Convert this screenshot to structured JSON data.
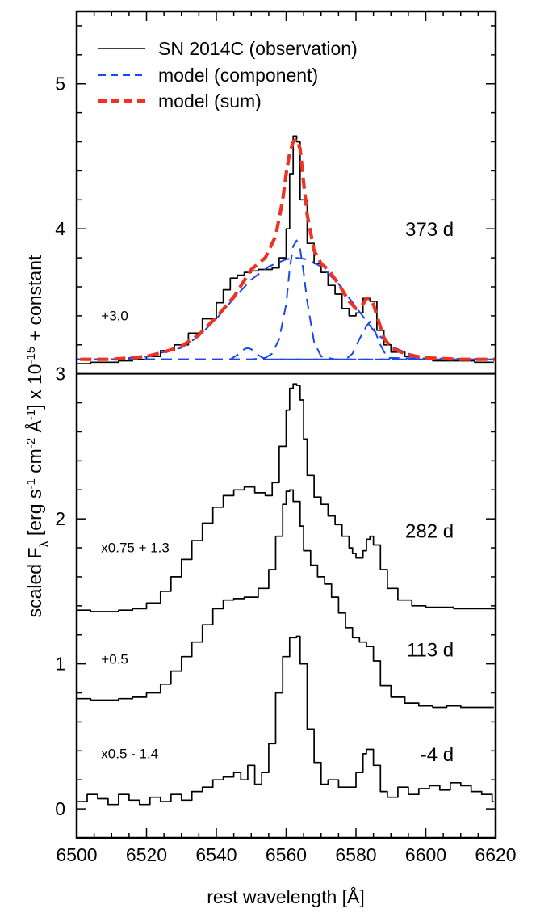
{
  "chart_data": {
    "type": "line",
    "title": "",
    "xlabel": "rest wavelength [Å]",
    "ylabel": {
      "prefix": "scaled F",
      "sub": "λ",
      "unit_open": " [erg s",
      "exp1": "-1",
      "unit_cm": " cm",
      "exp2": "-2",
      "unit_a": " Å",
      "exp3": "-1",
      "unit_close": "] x 10",
      "exp4": "-15",
      "suffix": " + constant"
    },
    "xlim": [
      6500,
      6620
    ],
    "ylim": [
      -0.2,
      5.5
    ],
    "x_ticks": [
      6500,
      6520,
      6540,
      6560,
      6580,
      6600,
      6620
    ],
    "y_ticks": [
      0,
      1,
      2,
      3,
      4,
      5
    ],
    "legend": {
      "position": "top-left",
      "entries": [
        {
          "label": "SN 2014C (observation)",
          "style": "solid",
          "color": "#000000"
        },
        {
          "label": "model (component)",
          "style": "dashed",
          "color": "#1a49e6"
        },
        {
          "label": "model (sum)",
          "style": "thick-dashed",
          "color": "#ee3322"
        }
      ]
    },
    "panel_divider_y": 3.0,
    "colors": {
      "observation": "#000000",
      "component": "#1a49e6",
      "sum": "#ee3322"
    },
    "epochs": [
      {
        "label": "373 d",
        "offset_text": "+3.0",
        "label_at": [
          6608,
          3.95
        ],
        "offset_at": [
          6507,
          3.37
        ]
      },
      {
        "label": "282 d",
        "offset_text": "x0.75 + 1.3",
        "label_at": [
          6608,
          1.87
        ],
        "offset_at": [
          6507,
          1.77
        ]
      },
      {
        "label": "113 d",
        "offset_text": "+0.5",
        "label_at": [
          6608,
          1.05
        ],
        "offset_at": [
          6507,
          1.0
        ]
      },
      {
        "label": "-4 d",
        "offset_text": "x0.5 - 1.4",
        "label_at": [
          6608,
          0.33
        ],
        "offset_at": [
          6507,
          0.35
        ]
      }
    ],
    "series": [
      {
        "name": "373 d observation",
        "kind": "step",
        "x": [
          6500,
          6504,
          6508,
          6512,
          6516,
          6520,
          6524,
          6528,
          6532,
          6536,
          6540,
          6542,
          6544,
          6546,
          6548,
          6550,
          6552,
          6554,
          6556,
          6558,
          6560,
          6561,
          6562,
          6563,
          6564,
          6566,
          6568,
          6570,
          6572,
          6574,
          6576,
          6578,
          6580,
          6582,
          6584,
          6586,
          6588,
          6590,
          6594,
          6598,
          6602,
          6606,
          6610,
          6614,
          6618
        ],
        "y": [
          3.07,
          3.08,
          3.08,
          3.09,
          3.1,
          3.12,
          3.16,
          3.2,
          3.28,
          3.38,
          3.49,
          3.58,
          3.66,
          3.68,
          3.7,
          3.71,
          3.72,
          3.72,
          3.73,
          3.8,
          4.0,
          4.38,
          4.64,
          4.6,
          4.2,
          3.9,
          3.76,
          3.7,
          3.61,
          3.55,
          3.45,
          3.4,
          3.42,
          3.52,
          3.5,
          3.3,
          3.2,
          3.15,
          3.12,
          3.1,
          3.09,
          3.09,
          3.09,
          3.08,
          3.08
        ]
      },
      {
        "name": "373 d broad component",
        "kind": "line",
        "x": [
          6500,
          6510,
          6520,
          6530,
          6535,
          6540,
          6545,
          6550,
          6555,
          6560,
          6563,
          6566,
          6570,
          6575,
          6580,
          6585,
          6590,
          6595,
          6600,
          6610,
          6620
        ],
        "y": [
          3.1,
          3.1,
          3.12,
          3.18,
          3.26,
          3.38,
          3.52,
          3.65,
          3.74,
          3.79,
          3.8,
          3.79,
          3.74,
          3.62,
          3.46,
          3.3,
          3.19,
          3.14,
          3.11,
          3.1,
          3.1
        ]
      },
      {
        "name": "373 d narrow component",
        "kind": "line",
        "x": [
          6500,
          6550,
          6554,
          6556,
          6558,
          6560,
          6561,
          6562,
          6563,
          6564,
          6565,
          6566,
          6568,
          6570,
          6574,
          6620
        ],
        "y": [
          3.1,
          3.1,
          3.11,
          3.14,
          3.24,
          3.48,
          3.72,
          3.88,
          3.92,
          3.86,
          3.7,
          3.5,
          3.22,
          3.12,
          3.1,
          3.1
        ]
      },
      {
        "name": "373 d component 6548",
        "kind": "line",
        "x": [
          6500,
          6544,
          6546,
          6548,
          6549,
          6550,
          6552,
          6554,
          6620
        ],
        "y": [
          3.1,
          3.1,
          3.13,
          3.17,
          3.18,
          3.17,
          3.13,
          3.1,
          3.1
        ]
      },
      {
        "name": "373 d component 6584",
        "kind": "line",
        "x": [
          6500,
          6577,
          6579,
          6581,
          6583,
          6584,
          6585,
          6587,
          6589,
          6620
        ],
        "y": [
          3.1,
          3.1,
          3.14,
          3.24,
          3.33,
          3.36,
          3.32,
          3.2,
          3.11,
          3.1
        ]
      },
      {
        "name": "373 d model sum",
        "kind": "line",
        "x": [
          6501,
          6510,
          6520,
          6525,
          6530,
          6535,
          6540,
          6545,
          6550,
          6554,
          6557,
          6559,
          6560,
          6561,
          6562,
          6563,
          6564,
          6565,
          6566,
          6568,
          6570,
          6572,
          6575,
          6578,
          6580,
          6582,
          6583,
          6584,
          6585,
          6586,
          6588,
          6590,
          6595,
          6600,
          6610,
          6620
        ],
        "y": [
          3.1,
          3.1,
          3.12,
          3.15,
          3.19,
          3.27,
          3.39,
          3.53,
          3.72,
          3.8,
          3.95,
          4.2,
          4.38,
          4.52,
          4.6,
          4.62,
          4.55,
          4.32,
          4.1,
          3.85,
          3.76,
          3.72,
          3.62,
          3.5,
          3.45,
          3.48,
          3.52,
          3.52,
          3.48,
          3.4,
          3.25,
          3.18,
          3.13,
          3.11,
          3.1,
          3.1
        ]
      },
      {
        "name": "282 d observation",
        "kind": "step",
        "x": [
          6500,
          6504,
          6508,
          6512,
          6516,
          6520,
          6524,
          6527,
          6530,
          6533,
          6536,
          6539,
          6542,
          6545,
          6548,
          6551,
          6554,
          6556,
          6558,
          6560,
          6561,
          6562,
          6563,
          6564,
          6565,
          6566,
          6568,
          6570,
          6572,
          6574,
          6576,
          6578,
          6579,
          6580,
          6582,
          6583,
          6584,
          6585,
          6587,
          6589,
          6592,
          6596,
          6600,
          6604,
          6608,
          6612,
          6616,
          6620
        ],
        "y": [
          1.37,
          1.36,
          1.36,
          1.37,
          1.38,
          1.42,
          1.5,
          1.6,
          1.72,
          1.85,
          1.97,
          2.08,
          2.16,
          2.2,
          2.22,
          2.18,
          2.16,
          2.25,
          2.5,
          2.75,
          2.9,
          2.93,
          2.92,
          2.82,
          2.55,
          2.3,
          2.15,
          2.1,
          2.02,
          1.96,
          1.88,
          1.8,
          1.76,
          1.73,
          1.78,
          1.86,
          1.88,
          1.82,
          1.65,
          1.52,
          1.44,
          1.4,
          1.39,
          1.39,
          1.38,
          1.38,
          1.38,
          1.38
        ]
      },
      {
        "name": "113 d observation",
        "kind": "step",
        "x": [
          6500,
          6504,
          6508,
          6512,
          6516,
          6520,
          6524,
          6527,
          6530,
          6533,
          6536,
          6539,
          6542,
          6545,
          6548,
          6552,
          6555,
          6557,
          6559,
          6560,
          6561,
          6562,
          6564,
          6565,
          6567,
          6569,
          6571,
          6573,
          6575,
          6577,
          6579,
          6581,
          6583,
          6585,
          6587,
          6590,
          6594,
          6598,
          6602,
          6606,
          6610,
          6614,
          6618
        ],
        "y": [
          0.76,
          0.75,
          0.75,
          0.76,
          0.77,
          0.8,
          0.86,
          0.95,
          1.05,
          1.15,
          1.27,
          1.38,
          1.44,
          1.45,
          1.46,
          1.52,
          1.65,
          1.88,
          2.1,
          2.19,
          2.2,
          2.12,
          1.95,
          1.78,
          1.68,
          1.6,
          1.55,
          1.46,
          1.35,
          1.25,
          1.18,
          1.15,
          1.12,
          1.02,
          0.85,
          0.77,
          0.73,
          0.71,
          0.7,
          0.71,
          0.7,
          0.7,
          0.7
        ]
      },
      {
        "name": "-4 d observation",
        "kind": "step",
        "x": [
          6500,
          6503,
          6506,
          6509,
          6512,
          6515,
          6518,
          6521,
          6524,
          6527,
          6530,
          6533,
          6536,
          6539,
          6542,
          6545,
          6547,
          6549,
          6551,
          6553,
          6555,
          6557,
          6559,
          6561,
          6563,
          6564,
          6566,
          6568,
          6570,
          6572,
          6575,
          6578,
          6580,
          6582,
          6583,
          6585,
          6587,
          6589,
          6592,
          6595,
          6598,
          6601,
          6604,
          6607,
          6610,
          6613,
          6616,
          6619
        ],
        "y": [
          0.05,
          0.1,
          0.07,
          0.03,
          0.1,
          0.06,
          0.03,
          0.08,
          0.05,
          0.1,
          0.06,
          0.12,
          0.15,
          0.2,
          0.22,
          0.25,
          0.2,
          0.3,
          0.17,
          0.25,
          0.45,
          0.8,
          1.05,
          1.18,
          1.19,
          1.0,
          0.55,
          0.32,
          0.17,
          0.2,
          0.15,
          0.15,
          0.25,
          0.38,
          0.41,
          0.3,
          0.12,
          0.08,
          0.15,
          0.1,
          0.14,
          0.16,
          0.13,
          0.18,
          0.16,
          0.12,
          0.1,
          0.05
        ]
      }
    ]
  }
}
